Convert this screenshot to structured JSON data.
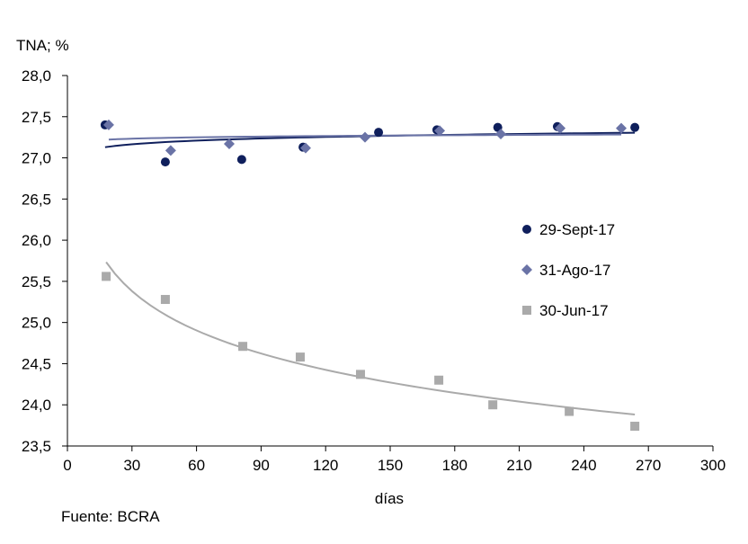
{
  "chart_data": {
    "type": "scatter",
    "ylabel": "TNA; %",
    "xlabel": "días",
    "source": "Fuente: BCRA",
    "xlim": [
      0,
      300
    ],
    "ylim": [
      23.5,
      28.0
    ],
    "xticks": [
      0,
      30,
      60,
      90,
      120,
      150,
      180,
      210,
      240,
      270,
      300
    ],
    "yticks": [
      "23,5",
      "24,0",
      "24,5",
      "25,0",
      "25,5",
      "26,0",
      "26,5",
      "27,0",
      "27,5",
      "28,0"
    ],
    "grid": false,
    "legend": "right",
    "trendline": "logarithmic",
    "series": [
      {
        "name": "29-Sept-17",
        "marker": "circle",
        "color": "#0f1f5c",
        "x": [
          17.5,
          45.5,
          81,
          109.5,
          144.6,
          171.7,
          200,
          227.7,
          263.7
        ],
        "y": [
          27.4,
          26.95,
          26.98,
          27.13,
          27.31,
          27.34,
          27.37,
          27.38,
          27.37
        ]
      },
      {
        "name": "31-Ago-17",
        "marker": "diamond",
        "color": "#6a73a6",
        "x": [
          19.2,
          48,
          75.2,
          110.7,
          138.3,
          173,
          201.4,
          229,
          257.4
        ],
        "y": [
          27.4,
          27.09,
          27.17,
          27.12,
          27.25,
          27.33,
          27.29,
          27.36,
          27.36
        ]
      },
      {
        "name": "30-Jun-17",
        "marker": "square",
        "color": "#aaaaaa",
        "x": [
          18,
          45.5,
          81.5,
          108.2,
          136.2,
          172.6,
          197.7,
          233.2,
          263.7
        ],
        "y": [
          25.56,
          25.28,
          24.71,
          24.58,
          24.37,
          24.3,
          24.0,
          23.92,
          23.74
        ]
      }
    ]
  }
}
